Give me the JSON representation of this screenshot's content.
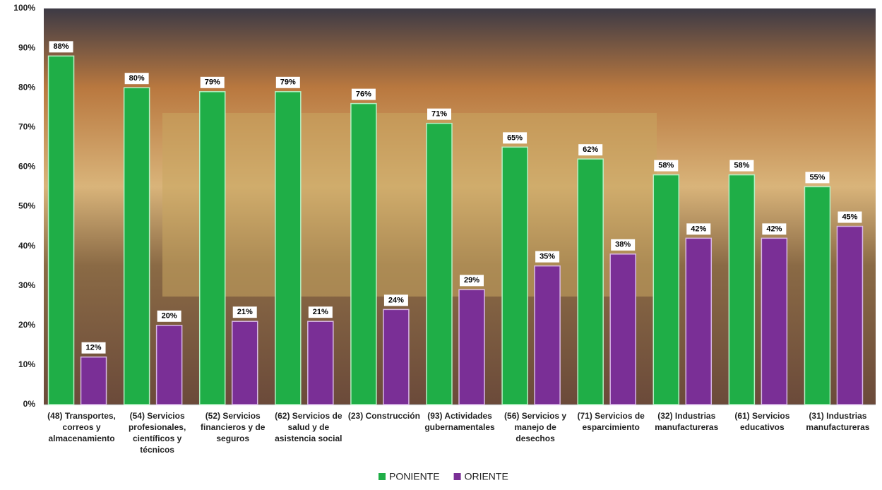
{
  "chart_data": {
    "type": "bar",
    "categories": [
      "(48) Transportes, correos y almacenamiento",
      "(54) Servicios profesionales, científicos y técnicos",
      "(52) Servicios financieros y de seguros",
      "(62) Servicios de salud y de asistencia social",
      "(23) Construcción",
      "(93) Actividades gubernamentales",
      "(56) Servicios y manejo de desechos",
      "(71) Servicios de esparcimiento",
      "(32) Industrias manufactureras",
      "(61) Servicios educativos",
      "(31) Industrias manufactureras"
    ],
    "series": [
      {
        "name": "PONIENTE",
        "color": "#1fae47",
        "values": [
          88,
          80,
          79,
          79,
          76,
          71,
          65,
          62,
          58,
          58,
          55
        ],
        "value_labels": [
          "88%",
          "80%",
          "79%",
          "79%",
          "76%",
          "71%",
          "65%",
          "62%",
          "58%",
          "58%",
          "55%"
        ]
      },
      {
        "name": "ORIENTE",
        "color": "#7a2f96",
        "values": [
          12,
          20,
          21,
          21,
          24,
          29,
          35,
          38,
          42,
          42,
          45
        ],
        "value_labels": [
          "12%",
          "20%",
          "21%",
          "21%",
          "24%",
          "29%",
          "35%",
          "38%",
          "42%",
          "42%",
          "45%"
        ]
      }
    ],
    "ylim": [
      0,
      100
    ],
    "yticks": [
      {
        "value": 0,
        "label": "0%"
      },
      {
        "value": 10,
        "label": "10%"
      },
      {
        "value": 20,
        "label": "20%"
      },
      {
        "value": 30,
        "label": "30%"
      },
      {
        "value": 40,
        "label": "40%"
      },
      {
        "value": 50,
        "label": "50%"
      },
      {
        "value": 60,
        "label": "60%"
      },
      {
        "value": 70,
        "label": "70%"
      },
      {
        "value": 80,
        "label": "80%"
      },
      {
        "value": 90,
        "label": "90%"
      },
      {
        "value": 100,
        "label": "100%"
      }
    ],
    "grid": false
  }
}
